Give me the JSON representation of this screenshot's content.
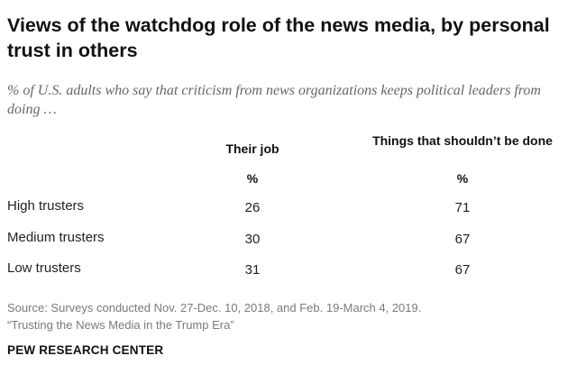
{
  "title": "Views of the watchdog role of the news media, by personal trust in others",
  "subtitle": "% of U.S. adults who say that criticism from news organizations keeps political leaders from doing …",
  "chart_data": {
    "type": "table",
    "columns": [
      {
        "header": "Their job",
        "unit": "%"
      },
      {
        "header": "Things that shouldn’t be done",
        "unit": "%"
      }
    ],
    "rows": [
      {
        "label": "High trusters",
        "values": [
          26,
          71
        ]
      },
      {
        "label": "Medium trusters",
        "values": [
          30,
          67
        ]
      },
      {
        "label": "Low trusters",
        "values": [
          31,
          67
        ]
      }
    ]
  },
  "source": {
    "line1": "Source: Surveys conducted Nov. 27-Dec. 10, 2018, and Feb. 19-March 4, 2019.",
    "line2": "“Trusting the News Media in the Trump Era”"
  },
  "brand": "PEW RESEARCH CENTER"
}
